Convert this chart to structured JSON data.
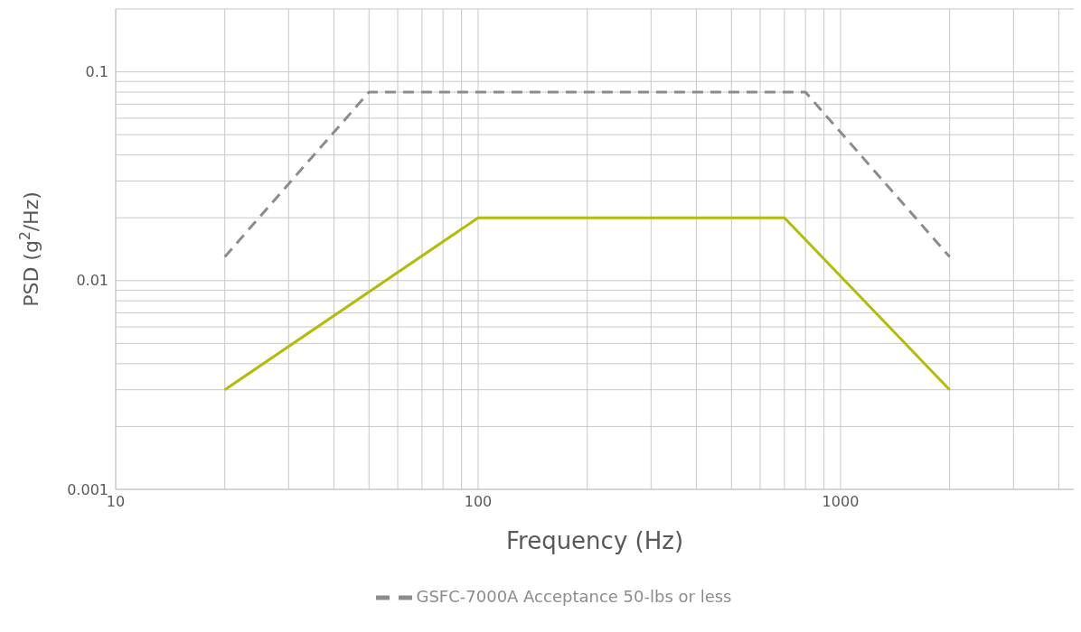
{
  "chart_data": {
    "type": "line",
    "xlabel": "Frequency (Hz)",
    "ylabel": "PSD (g$^{2}$/Hz)",
    "log": "xy",
    "xlim": [
      10,
      4400
    ],
    "ylim": [
      0.001,
      0.2
    ],
    "xticks": [
      10,
      100,
      1000
    ],
    "yticks": [
      0.001,
      0.01,
      0.1
    ],
    "grid": true,
    "legend": "bottom",
    "marker": "none",
    "series": [
      {
        "color": "#b3bc0b",
        "line_style": "solid",
        "x": [
          20,
          100,
          700,
          2000
        ],
        "values": [
          0.003,
          0.02,
          0.02,
          0.003
        ]
      },
      {
        "name": "GSFC-7000A Acceptance 50-lbs or less",
        "color": "#8c8c8c",
        "line_style": "dashed",
        "x": [
          20,
          50,
          800,
          2000
        ],
        "values": [
          0.013,
          0.08,
          0.08,
          0.013
        ]
      }
    ]
  }
}
